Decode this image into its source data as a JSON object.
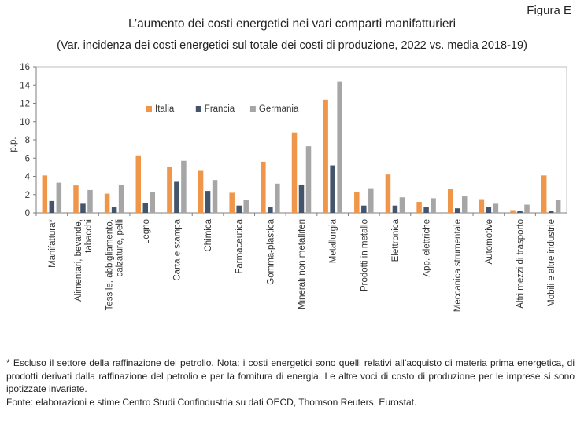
{
  "header": {
    "figure_label": "Figura E",
    "title": "L’aumento dei costi energetici nei vari comparti manifatturieri",
    "subtitle": "(Var. incidenza dei costi energetici sul totale dei costi di produzione, 2022 vs. media 2018-19)"
  },
  "chart_data": {
    "type": "bar",
    "title": "L’aumento dei costi energetici nei vari comparti manifatturieri",
    "subtitle": "(Var. incidenza dei costi energetici sul totale dei costi di produzione, 2022 vs. media 2018-19)",
    "ylabel": "p.p.",
    "xlabel": "",
    "ylim": [
      0,
      16
    ],
    "yticks": [
      0,
      2,
      4,
      6,
      8,
      10,
      12,
      14,
      16
    ],
    "grid": false,
    "legend_position": "top-left",
    "categories": [
      [
        "Manifattura*"
      ],
      [
        "Alimentari, bevande,",
        "tabacchi"
      ],
      [
        "Tessile, abbigliamento,",
        "calzature, pelli"
      ],
      [
        "Legno"
      ],
      [
        "Carta e stampa"
      ],
      [
        "Chimica"
      ],
      [
        "Farmaceutica"
      ],
      [
        "Gomma-plastica"
      ],
      [
        "Minerali non metalliferi"
      ],
      [
        "Metallurgia"
      ],
      [
        "Prodotti in metallo"
      ],
      [
        "Elettronica"
      ],
      [
        "App. elettriche"
      ],
      [
        "Meccanica strumentale"
      ],
      [
        "Automotive"
      ],
      [
        "Altri mezzi di trasporto"
      ],
      [
        "Mobili e altre industrie"
      ]
    ],
    "series": [
      {
        "name": "Italia",
        "color": "#F0964A",
        "values": [
          4.1,
          3.0,
          2.1,
          6.3,
          5.0,
          4.6,
          2.2,
          5.6,
          8.8,
          12.4,
          2.3,
          4.2,
          1.2,
          2.6,
          1.5,
          0.3,
          4.1
        ]
      },
      {
        "name": "Francia",
        "color": "#44546A",
        "values": [
          1.3,
          1.0,
          0.6,
          1.1,
          3.4,
          2.4,
          0.8,
          0.6,
          3.1,
          5.2,
          0.8,
          0.8,
          0.6,
          0.5,
          0.6,
          0.2,
          0.2
        ]
      },
      {
        "name": "Germania",
        "color": "#A6A6A6",
        "values": [
          3.3,
          2.5,
          3.1,
          2.3,
          5.7,
          3.6,
          1.4,
          3.2,
          7.3,
          14.4,
          2.7,
          1.7,
          1.6,
          1.8,
          1.0,
          0.9,
          1.4
        ]
      }
    ]
  },
  "notes": {
    "note": "* Escluso il settore  della raffinazione del petrolio. Nota: i costi energetici sono quelli relativi all’acquisto di materia prima energetica, di prodotti derivati dalla raffinazione del petrolio e per la fornitura di energia. Le altre voci di costo di produzione per le imprese si sono ipotizzate invariate.",
    "source": "Fonte: elaborazioni e stime Centro Studi Confindustria su dati OECD, Thomson Reuters, Eurostat."
  }
}
